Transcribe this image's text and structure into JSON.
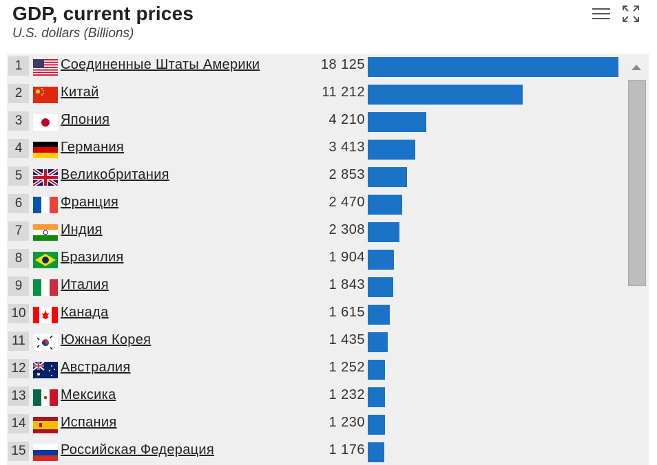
{
  "chart_data": {
    "type": "bar",
    "orientation": "horizontal",
    "title": "GDP, current prices",
    "subtitle": "U.S. dollars (Billions)",
    "bar_color": "#1a73c7",
    "xlim": [
      0,
      18125
    ],
    "rows": [
      {
        "rank": "1",
        "country": "Соединенные Штаты Америки",
        "value": 18125,
        "value_label": "18 125",
        "flag": "flag-usa"
      },
      {
        "rank": "2",
        "country": "Китай",
        "value": 11212,
        "value_label": "11 212",
        "flag": "flag-china"
      },
      {
        "rank": "3",
        "country": "Япония",
        "value": 4210,
        "value_label": "4 210",
        "flag": "flag-japan"
      },
      {
        "rank": "4",
        "country": "Германия",
        "value": 3413,
        "value_label": "3 413",
        "flag": "flag-germany"
      },
      {
        "rank": "5",
        "country": "Великобритания",
        "value": 2853,
        "value_label": "2 853",
        "flag": "flag-uk"
      },
      {
        "rank": "6",
        "country": "Франция",
        "value": 2470,
        "value_label": "2 470",
        "flag": "flag-france"
      },
      {
        "rank": "7",
        "country": "Индия",
        "value": 2308,
        "value_label": "2 308",
        "flag": "flag-india"
      },
      {
        "rank": "8",
        "country": "Бразилия",
        "value": 1904,
        "value_label": "1 904",
        "flag": "flag-brazil"
      },
      {
        "rank": "9",
        "country": "Италия",
        "value": 1843,
        "value_label": "1 843",
        "flag": "flag-italy"
      },
      {
        "rank": "10",
        "country": "Канада",
        "value": 1615,
        "value_label": "1 615",
        "flag": "flag-canada"
      },
      {
        "rank": "11",
        "country": "Южная Корея",
        "value": 1435,
        "value_label": "1 435",
        "flag": "flag-south-korea"
      },
      {
        "rank": "12",
        "country": "Австралия",
        "value": 1252,
        "value_label": "1 252",
        "flag": "flag-australia"
      },
      {
        "rank": "13",
        "country": "Мексика",
        "value": 1232,
        "value_label": "1 232",
        "flag": "flag-mexico"
      },
      {
        "rank": "14",
        "country": "Испания",
        "value": 1230,
        "value_label": "1 230",
        "flag": "flag-spain"
      },
      {
        "rank": "15",
        "country": "Российская Федерация",
        "value": 1176,
        "value_label": "1 176",
        "flag": "flag-russia"
      }
    ]
  },
  "controls": {
    "menu_icon": "menu-icon",
    "expand_icon": "expand-icon",
    "scroll_up_icon": "scroll-up-arrow-icon"
  }
}
